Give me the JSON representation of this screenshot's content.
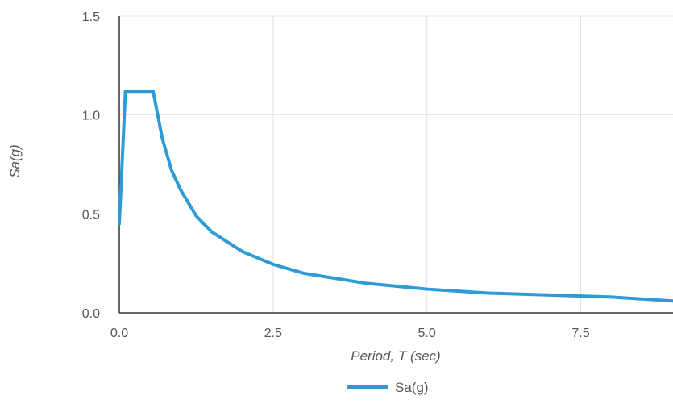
{
  "chart_data": {
    "type": "line",
    "title": "",
    "xlabel": "Period, T (sec)",
    "ylabel": "Sa(g)",
    "xlim": [
      0,
      9.0
    ],
    "ylim": [
      0,
      1.5
    ],
    "x_ticks": [
      "0.0",
      "2.5",
      "5.0",
      "7.5"
    ],
    "y_ticks": [
      "0.0",
      "0.5",
      "1.0",
      "1.5"
    ],
    "grid": true,
    "legend_position": "bottom-center",
    "series": [
      {
        "name": "Sa(g)",
        "color": "#2e9bd6",
        "x": [
          0.0,
          0.1,
          0.55,
          0.7,
          0.85,
          1.0,
          1.25,
          1.5,
          2.0,
          2.5,
          3.0,
          4.0,
          5.0,
          6.0,
          7.0,
          8.0,
          9.0
        ],
        "y": [
          0.45,
          1.12,
          1.12,
          0.88,
          0.72,
          0.62,
          0.49,
          0.41,
          0.31,
          0.245,
          0.2,
          0.15,
          0.12,
          0.1,
          0.09,
          0.08,
          0.06
        ]
      }
    ]
  }
}
